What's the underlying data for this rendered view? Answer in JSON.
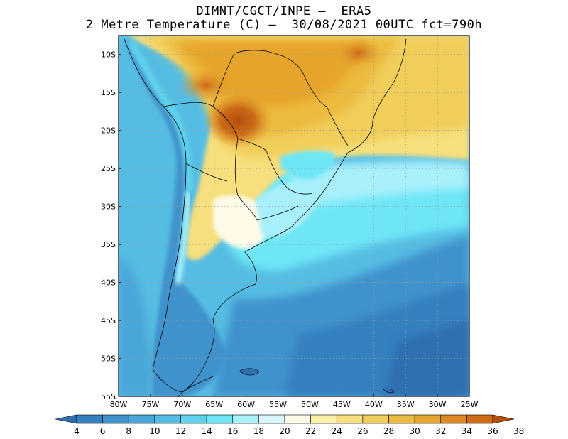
{
  "title": {
    "line1": "DIMNT/CGCT/INPE –  ERA5",
    "line2": "2 Metre Temperature (C) –  30/08/2021 00UTC fct=790h"
  },
  "map": {
    "lon_range": [
      -80,
      -25
    ],
    "lat_range": [
      -55,
      -7.5
    ],
    "lat_ticks": [
      "10S",
      "15S",
      "20S",
      "25S",
      "30S",
      "35S",
      "40S",
      "45S",
      "50S",
      "55S"
    ],
    "lon_ticks": [
      "80W",
      "75W",
      "70W",
      "65W",
      "60W",
      "55W",
      "50W",
      "45W",
      "40W",
      "35W",
      "30W",
      "25W"
    ],
    "grid": "dotted",
    "colorbar": {
      "labels": [
        "4",
        "6",
        "8",
        "10",
        "12",
        "14",
        "16",
        "18",
        "20",
        "22",
        "24",
        "26",
        "28",
        "30",
        "32",
        "34",
        "36",
        "38"
      ],
      "colors": [
        "#2f6fb0",
        "#3580bf",
        "#3f92cc",
        "#4aa6d8",
        "#55bde3",
        "#5ed3ee",
        "#6ee6f6",
        "#a8f0fb",
        "#d9f7fc",
        "#fffbe8",
        "#fbf0a8",
        "#f6df7c",
        "#f1cd5a",
        "#ecba3e",
        "#e6a52c",
        "#dc8a20",
        "#cc6a16",
        "#b54d0e"
      ]
    }
  }
}
